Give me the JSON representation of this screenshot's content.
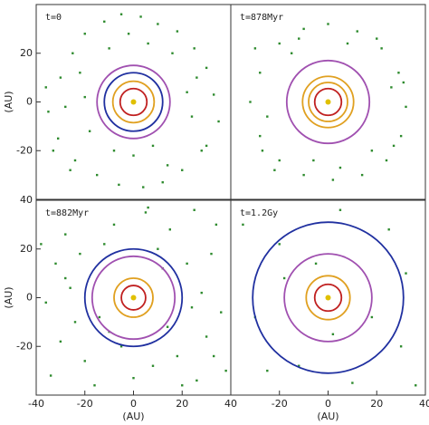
{
  "chart_data": [
    {
      "type": "scatter",
      "label": "t=0",
      "ylabel": "(AU)",
      "xlim": [
        -40,
        40
      ],
      "ylim": [
        -40,
        40
      ],
      "xticks": [],
      "yticks": [
        20,
        0,
        -20
      ],
      "point_color": "#2e8b2e",
      "x": [
        -30,
        -25,
        -20,
        -12,
        -5,
        3,
        10,
        18,
        25,
        30,
        33,
        35,
        28,
        20,
        12,
        4,
        -6,
        -15,
        -24,
        -31,
        -35,
        -36,
        -28,
        -22,
        -18,
        -10,
        0,
        8,
        16,
        24,
        -26,
        26,
        -8,
        6,
        22,
        -20,
        30,
        -33,
        14,
        -2
      ],
      "y": [
        10,
        20,
        28,
        33,
        36,
        35,
        32,
        29,
        22,
        14,
        3,
        -8,
        -20,
        -28,
        -33,
        -35,
        -34,
        -30,
        -24,
        -15,
        -4,
        6,
        -2,
        12,
        -12,
        22,
        -22,
        -18,
        20,
        -6,
        -28,
        10,
        -20,
        24,
        4,
        2,
        -18,
        -20,
        -26,
        28
      ],
      "orbits": [
        {
          "color": "#c02020",
          "radius": 5.5
        },
        {
          "color": "#e0a020",
          "radius": 8.5
        },
        {
          "color": "#2030a0",
          "radius": 12
        },
        {
          "color": "#a050b0",
          "radius": 15
        }
      ],
      "star": {
        "x": 0,
        "y": 0,
        "color": "#e0c000"
      }
    },
    {
      "type": "scatter",
      "label": "t=878Myr",
      "xlim": [
        -40,
        40
      ],
      "ylim": [
        -40,
        40
      ],
      "xticks": [],
      "yticks": [],
      "point_color": "#2e8b2e",
      "x": [
        -28,
        -20,
        -10,
        0,
        12,
        22,
        29,
        32,
        30,
        24,
        14,
        2,
        -10,
        -20,
        -28,
        -32,
        -25,
        -15,
        18,
        26,
        -6,
        8,
        -30,
        31,
        20,
        -22,
        5,
        -12,
        27,
        -27
      ],
      "y": [
        12,
        24,
        30,
        32,
        29,
        22,
        12,
        -2,
        -14,
        -24,
        -30,
        -32,
        -30,
        -24,
        -14,
        0,
        -6,
        20,
        -20,
        6,
        -24,
        24,
        22,
        8,
        26,
        -28,
        -27,
        26,
        -18,
        -20
      ],
      "orbits": [
        {
          "color": "#c02020",
          "radius": 5.5
        },
        {
          "color": "#e0a020",
          "radius": 8
        },
        {
          "color": "#e0a020",
          "radius": 10.5
        },
        {
          "color": "#a050b0",
          "radius": 17
        }
      ],
      "star": {
        "x": 0,
        "y": 0,
        "color": "#e0c000"
      }
    },
    {
      "type": "scatter",
      "label": "t=882Myr",
      "xlabel": "(AU)",
      "ylabel": "(AU)",
      "xlim": [
        -40,
        40
      ],
      "ylim": [
        -40,
        40
      ],
      "xticks": [
        -40,
        -20,
        0,
        20,
        40
      ],
      "yticks": [
        40,
        20,
        0,
        -20
      ],
      "point_color": "#2e8b2e",
      "x": [
        -35,
        -28,
        -18,
        -8,
        5,
        15,
        25,
        34,
        -32,
        -22,
        -12,
        10,
        22,
        32,
        -36,
        -26,
        -14,
        14,
        28,
        36,
        -30,
        -20,
        -5,
        8,
        18,
        30,
        -34,
        -16,
        0,
        20,
        38,
        -24,
        12,
        -38,
        26,
        -10,
        6,
        24,
        -28,
        33
      ],
      "y": [
        34,
        26,
        36,
        30,
        35,
        28,
        36,
        30,
        14,
        18,
        22,
        20,
        14,
        18,
        -2,
        4,
        -8,
        -12,
        2,
        -6,
        -18,
        -26,
        -20,
        -28,
        -24,
        -16,
        -32,
        -36,
        -33,
        -36,
        -30,
        -10,
        12,
        22,
        -34,
        -14,
        37,
        -4,
        8,
        -24
      ],
      "orbits": [
        {
          "color": "#c02020",
          "radius": 5
        },
        {
          "color": "#e0a020",
          "radius": 8
        },
        {
          "color": "#a050b0",
          "radius": 17
        },
        {
          "color": "#2030a0",
          "radius": 20
        }
      ],
      "star": {
        "x": 0,
        "y": 0,
        "color": "#e0c000"
      }
    },
    {
      "type": "scatter",
      "label": "t=1.2Gy",
      "xlabel": "(AU)",
      "xlim": [
        -40,
        40
      ],
      "ylim": [
        -40,
        40
      ],
      "xticks": [
        -20,
        0,
        20,
        40
      ],
      "yticks": [],
      "point_color": "#2e8b2e",
      "x": [
        -35,
        -20,
        5,
        25,
        32,
        -30,
        -12,
        10,
        30,
        -5,
        18,
        -25,
        36,
        2,
        -18
      ],
      "y": [
        30,
        22,
        36,
        28,
        10,
        -8,
        -28,
        -35,
        -20,
        14,
        -8,
        -30,
        -36,
        -15,
        8
      ],
      "orbits": [
        {
          "color": "#c02020",
          "radius": 5.5
        },
        {
          "color": "#e0a020",
          "radius": 9
        },
        {
          "color": "#a050b0",
          "radius": 18
        },
        {
          "color": "#2030a0",
          "radius": 31
        }
      ],
      "star": {
        "x": 0,
        "y": 0,
        "color": "#e0c000"
      }
    }
  ]
}
